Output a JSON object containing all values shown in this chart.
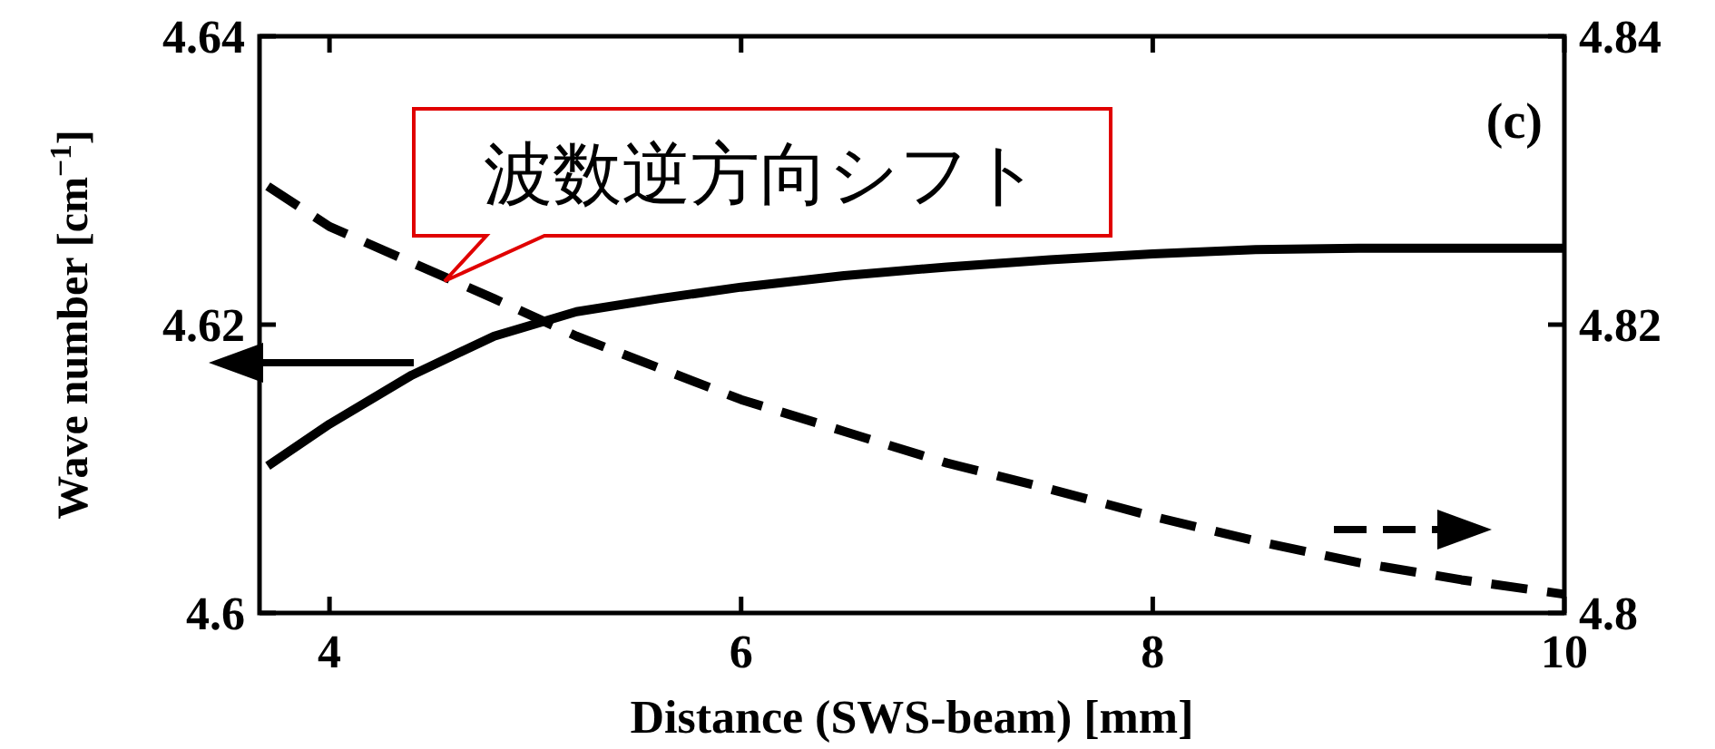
{
  "chart_data": {
    "type": "line",
    "xlabel": "Distance (SWS-beam) [mm]",
    "ylabel": "Wave number [cm$^{−1}$]",
    "annotations": [
      "(c)",
      "波数逆方向シフト"
    ],
    "x": [
      3.7,
      4,
      4.4,
      4.8,
      5.2,
      5.6,
      6,
      6.5,
      7,
      7.5,
      8,
      8.5,
      9,
      9.5,
      10
    ],
    "series": [
      {
        "color": "#000000",
        "line_style": "solid",
        "values": [
          4.6102,
          4.6131,
          4.6165,
          4.6192,
          4.6209,
          4.6218,
          4.6226,
          4.6234,
          4.624,
          4.6245,
          4.6249,
          4.6252,
          4.6253,
          4.6253,
          4.6253
        ]
      },
      {
        "color": "#000000",
        "line_style": "dashed",
        "axis": "y2",
        "values": [
          4.8296,
          4.8268,
          4.8243,
          4.8218,
          4.8192,
          4.817,
          4.8148,
          4.8126,
          4.8104,
          4.8086,
          4.8067,
          4.805,
          4.8035,
          4.8023,
          4.8013
        ]
      }
    ],
    "xlim": [
      3.66,
      10
    ],
    "xticks": [
      4,
      6,
      8,
      10
    ],
    "ylim": [
      4.6,
      4.64
    ],
    "yticks": [
      4.6,
      4.62,
      4.64
    ],
    "y2lim": [
      4.8,
      4.84
    ],
    "y2ticks": [
      4.8,
      4.82,
      4.84
    ]
  }
}
